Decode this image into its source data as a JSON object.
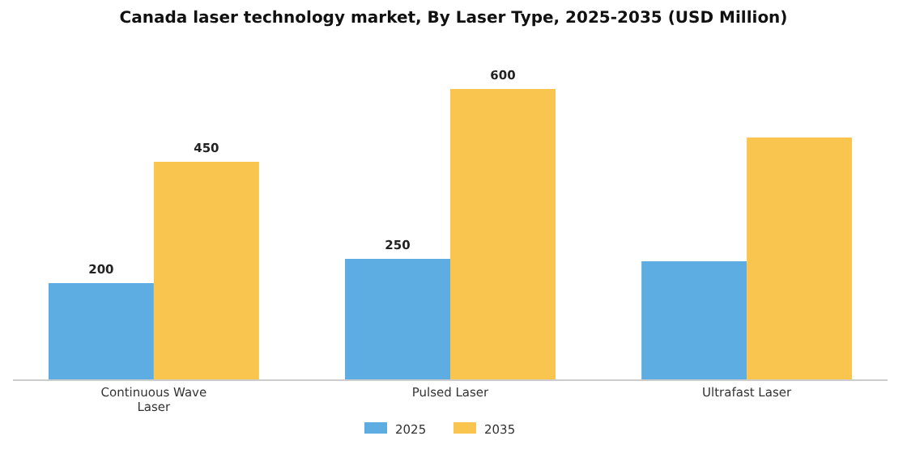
{
  "chart_data": {
    "type": "bar",
    "title": "Canada laser technology market, By Laser Type, 2025-2035 (USD Million)",
    "categories": [
      "Continuous Wave Laser",
      "Pulsed Laser",
      "Ultrafast Laser"
    ],
    "series": [
      {
        "name": "2025",
        "color": "#5dade2",
        "values": [
          200,
          250,
          245
        ],
        "value_labels": [
          "200",
          "250",
          null
        ]
      },
      {
        "name": "2035",
        "color": "#f9c54e",
        "values": [
          450,
          600,
          500
        ],
        "value_labels": [
          "450",
          "600",
          null
        ]
      }
    ],
    "legend": "bottom"
  }
}
